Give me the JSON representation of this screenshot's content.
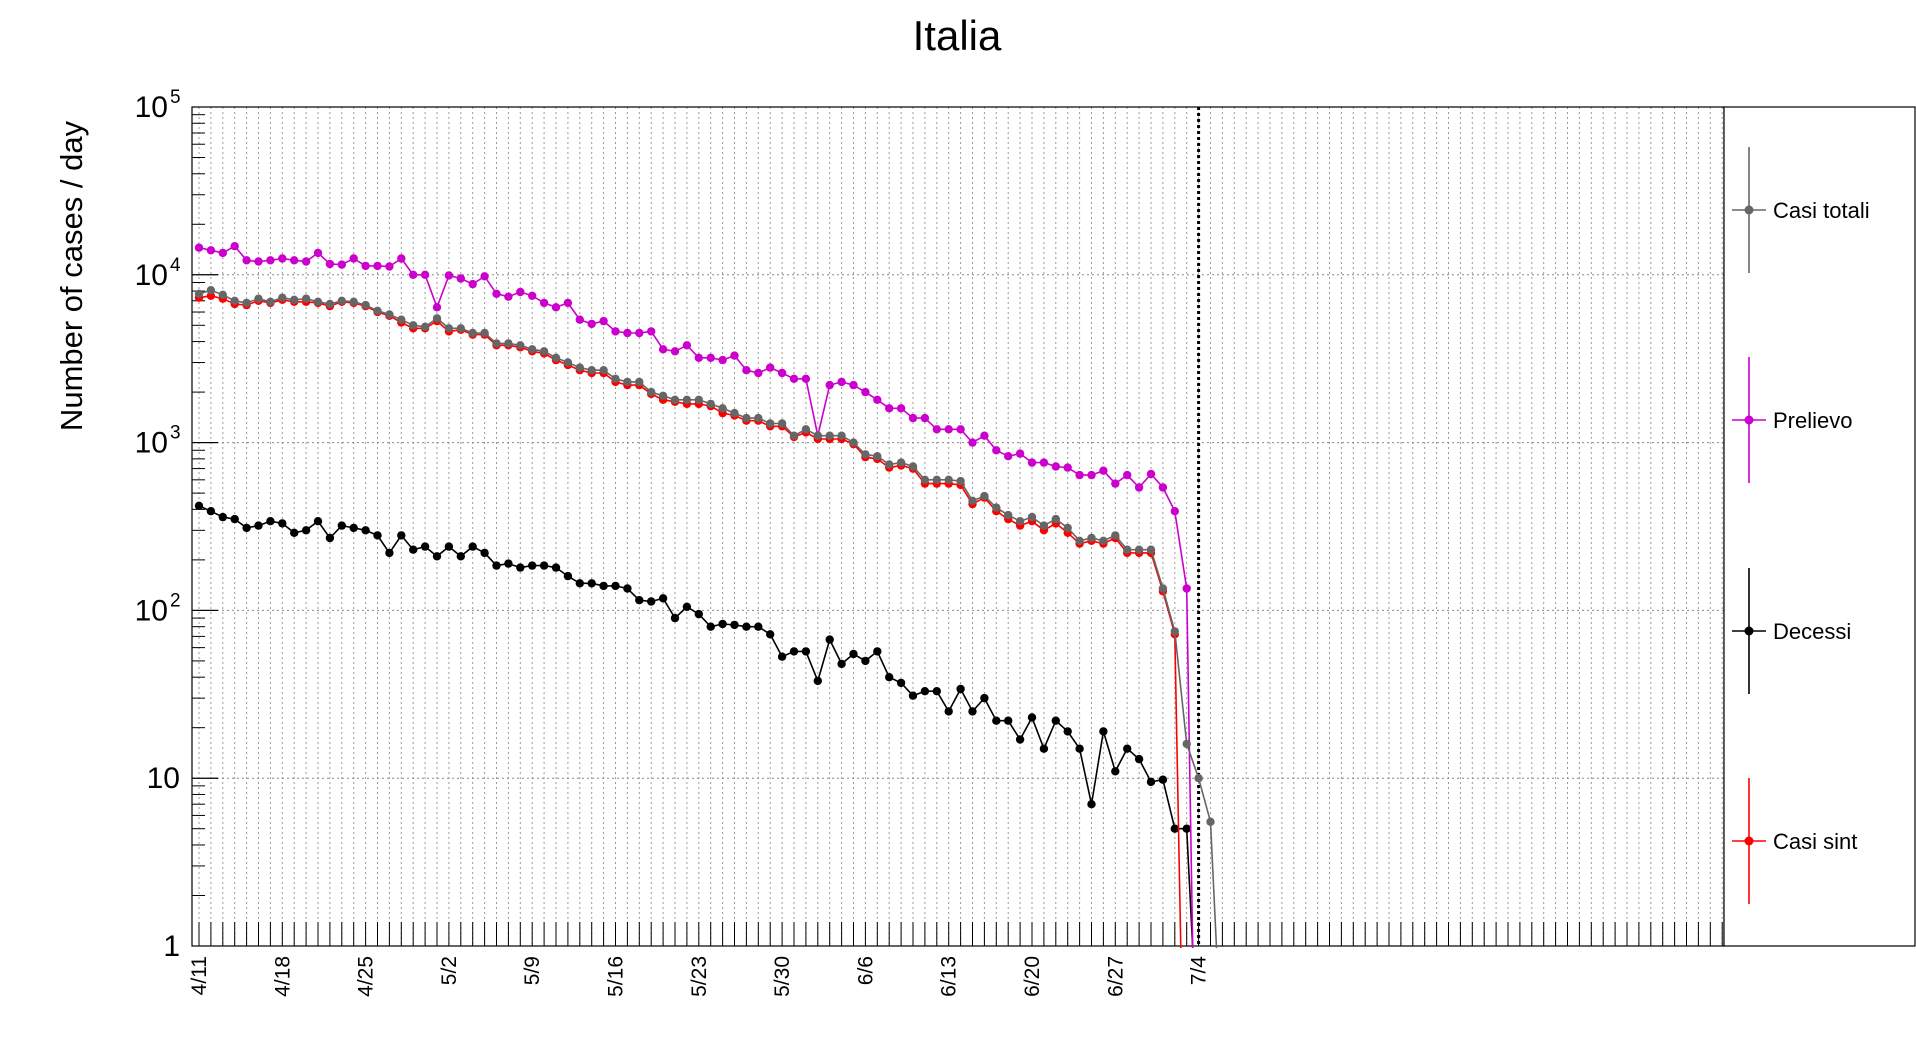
{
  "chart_data": {
    "type": "line",
    "title": "Italia",
    "ylabel": "Number of cases / day",
    "y_scale": "log",
    "ylim": [
      1,
      100000
    ],
    "y_ticks": [
      {
        "value": 1,
        "base": "1",
        "exp": ""
      },
      {
        "value": 10,
        "base": "10",
        "exp": ""
      },
      {
        "value": 100,
        "base": "10",
        "exp": "2"
      },
      {
        "value": 1000,
        "base": "10",
        "exp": "3"
      },
      {
        "value": 10000,
        "base": "10",
        "exp": "4"
      },
      {
        "value": 100000,
        "base": "10",
        "exp": "5"
      }
    ],
    "x_start": "4/11",
    "x_days_shown": 130,
    "x_tick_labels": [
      "4/11",
      "4/18",
      "4/25",
      "5/2",
      "5/9",
      "5/16",
      "5/23",
      "5/30",
      "6/6",
      "6/13",
      "6/20",
      "6/27",
      "7/4"
    ],
    "marker_line": "7/4",
    "grid": true,
    "legend": "right",
    "series": [
      {
        "name": "Casi totali",
        "color": "#666666",
        "values": [
          7700,
          8100,
          7600,
          7000,
          6800,
          7200,
          6900,
          7300,
          7100,
          7200,
          6900,
          6700,
          7000,
          6900,
          6600,
          6100,
          5800,
          5400,
          5000,
          4900,
          5500,
          4800,
          4800,
          4500,
          4500,
          3900,
          3900,
          3800,
          3600,
          3500,
          3200,
          3000,
          2800,
          2700,
          2700,
          2400,
          2300,
          2300,
          2000,
          1900,
          1800,
          1800,
          1800,
          1700,
          1600,
          1500,
          1400,
          1400,
          1300,
          1300,
          1100,
          1200,
          1100,
          1100,
          1100,
          1000,
          850,
          830,
          740,
          760,
          720,
          600,
          600,
          600,
          590,
          450,
          480,
          410,
          370,
          340,
          360,
          320,
          350,
          310,
          260,
          270,
          260,
          280,
          230,
          230,
          230,
          135,
          75,
          16,
          10,
          5.5
        ]
      },
      {
        "name": "Prelievo",
        "color": "#cc00cc",
        "values": [
          14500,
          14000,
          13500,
          14800,
          12200,
          12000,
          12200,
          12500,
          12200,
          12000,
          13500,
          11600,
          11500,
          12500,
          11300,
          11300,
          11200,
          12500,
          10000,
          10000,
          6400,
          9900,
          9500,
          8800,
          9800,
          7700,
          7400,
          7900,
          7500,
          6800,
          6400,
          6800,
          5400,
          5100,
          5300,
          4600,
          4500,
          4500,
          4600,
          3600,
          3500,
          3800,
          3200,
          3200,
          3100,
          3300,
          2700,
          2600,
          2800,
          2600,
          2400,
          2400,
          1100,
          2200,
          2300,
          2200,
          2000,
          1800,
          1600,
          1600,
          1400,
          1400,
          1200,
          1200,
          1200,
          1000,
          1100,
          900,
          830,
          860,
          760,
          760,
          720,
          710,
          640,
          640,
          680,
          570,
          640,
          540,
          650,
          540,
          390,
          135
        ]
      },
      {
        "name": "Decessi",
        "color": "#000000",
        "values": [
          420,
          390,
          360,
          350,
          310,
          320,
          340,
          330,
          290,
          300,
          340,
          270,
          320,
          310,
          300,
          280,
          220,
          280,
          230,
          240,
          210,
          240,
          210,
          240,
          220,
          185,
          190,
          180,
          185,
          185,
          180,
          160,
          145,
          145,
          140,
          140,
          135,
          115,
          113,
          118,
          90,
          105,
          95,
          80,
          83,
          82,
          80,
          80,
          72,
          53,
          57,
          57,
          38,
          67,
          48,
          55,
          50,
          57,
          40,
          37,
          31,
          33,
          33,
          25,
          34,
          25,
          30,
          22,
          22,
          17,
          23,
          15,
          22,
          19,
          15,
          7,
          19,
          11,
          15,
          13,
          9.5,
          9.8,
          5,
          5
        ]
      },
      {
        "name": "Casi sint",
        "color": "#ff0000",
        "values": [
          7300,
          7500,
          7200,
          6700,
          6600,
          7000,
          6800,
          7100,
          6900,
          6900,
          6800,
          6500,
          6900,
          6800,
          6500,
          6000,
          5700,
          5200,
          4800,
          4800,
          5300,
          4600,
          4700,
          4400,
          4400,
          3800,
          3800,
          3700,
          3500,
          3400,
          3100,
          2900,
          2700,
          2600,
          2600,
          2300,
          2200,
          2200,
          1950,
          1800,
          1750,
          1700,
          1700,
          1650,
          1500,
          1450,
          1350,
          1350,
          1250,
          1250,
          1080,
          1150,
          1050,
          1050,
          1050,
          980,
          820,
          800,
          710,
          730,
          700,
          570,
          570,
          570,
          560,
          430,
          470,
          390,
          350,
          320,
          340,
          300,
          330,
          290,
          250,
          260,
          250,
          270,
          220,
          220,
          220,
          130,
          72
        ]
      }
    ]
  }
}
